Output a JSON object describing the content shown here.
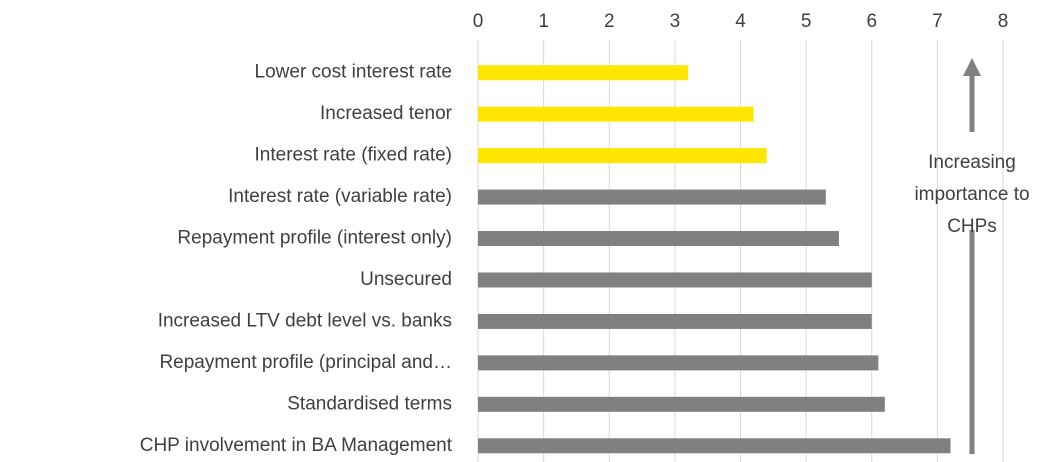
{
  "chart_data": {
    "type": "barh",
    "categories": [
      "Lower cost interest rate",
      "Increased tenor",
      "Interest rate (fixed rate)",
      "Interest rate (variable rate)",
      "Repayment profile (interest only)",
      "Unsecured",
      "Increased LTV debt level vs. banks",
      "Repayment profile (principal and…",
      "Standardised terms",
      "CHP involvement in BA Management"
    ],
    "values": [
      3.2,
      4.2,
      4.4,
      5.3,
      5.5,
      6.0,
      6.0,
      6.1,
      6.2,
      7.2
    ],
    "colors": [
      "#ffe600",
      "#ffe600",
      "#ffe600",
      "#808080",
      "#808080",
      "#808080",
      "#808080",
      "#808080",
      "#808080",
      "#808080"
    ],
    "xlim": [
      0,
      8
    ],
    "xticks": [
      0,
      1,
      2,
      3,
      4,
      5,
      6,
      7,
      8
    ],
    "grid": true,
    "annotation": [
      "Increasing",
      "importance to",
      "CHPs"
    ]
  }
}
